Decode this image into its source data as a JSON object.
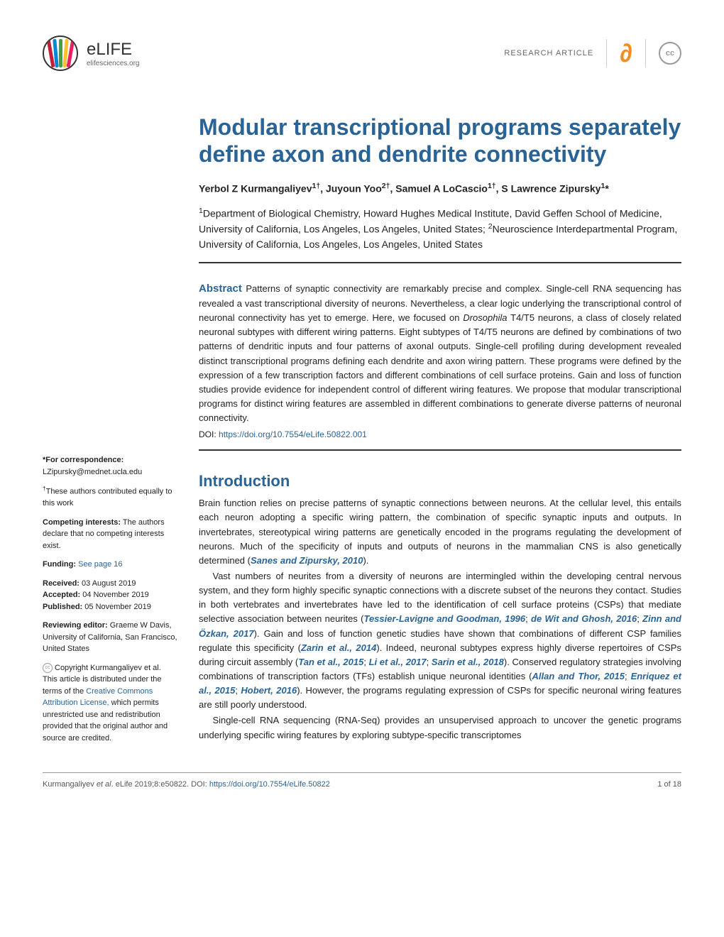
{
  "header": {
    "journal_name": "eLIFE",
    "journal_url": "elifesciences.org",
    "article_type": "RESEARCH ARTICLE"
  },
  "title": "Modular transcriptional programs separately define axon and dendrite connectivity",
  "authors_html": "Yerbol Z Kurmangaliyev<sup>1†</sup>, Juyoun Yoo<sup>2†</sup>, Samuel A LoCascio<sup>1†</sup>, S Lawrence Zipursky<sup>1</sup>*",
  "affiliations_html": "<sup>1</sup>Department of Biological Chemistry, Howard Hughes Medical Institute, David Geffen School of Medicine, University of California, Los Angeles, Los Angeles, United States; <sup>2</sup>Neuroscience Interdepartmental Program, University of California, Los Angeles, Los Angeles, United States",
  "abstract_label": "Abstract",
  "abstract_html": "Patterns of synaptic connectivity are remarkably precise and complex. Single-cell RNA sequencing has revealed a vast transcriptional diversity of neurons. Nevertheless, a clear logic underlying the transcriptional control of neuronal connectivity has yet to emerge. Here, we focused on <span class='italic'>Drosophila</span> T4/T5 neurons, a class of closely related neuronal subtypes with different wiring patterns. Eight subtypes of T4/T5 neurons are defined by combinations of two patterns of dendritic inputs and four patterns of axonal outputs. Single-cell profiling during development revealed distinct transcriptional programs defining each dendrite and axon wiring pattern. These programs were defined by the expression of a few transcription factors and different combinations of cell surface proteins. Gain and loss of function studies provide evidence for independent control of different wiring features. We propose that modular transcriptional programs for distinct wiring features are assembled in different combinations to generate diverse patterns of neuronal connectivity.",
  "doi_label": "DOI:",
  "doi_link": "https://doi.org/10.7554/eLife.50822.001",
  "intro_heading": "Introduction",
  "intro_p1": "Brain function relies on precise patterns of synaptic connections between neurons. At the cellular level, this entails each neuron adopting a specific wiring pattern, the combination of specific synaptic inputs and outputs. In invertebrates, stereotypical wiring patterns are genetically encoded in the programs regulating the development of neurons. Much of the specificity of inputs and outputs of neurons in the mammalian CNS is also genetically determined (<span class='ref'>Sanes and Zipursky, 2010</span>).",
  "intro_p2": "Vast numbers of neurites from a diversity of neurons are intermingled within the developing central nervous system, and they form highly specific synaptic connections with a discrete subset of the neurons they contact. Studies in both vertebrates and invertebrates have led to the identification of cell surface proteins (CSPs) that mediate selective association between neurites (<span class='ref'>Tessier-Lavigne and Goodman, 1996</span>; <span class='ref'>de Wit and Ghosh, 2016</span>; <span class='ref'>Zinn and Özkan, 2017</span>). Gain and loss of function genetic studies have shown that combinations of different CSP families regulate this specificity (<span class='ref'>Zarin et al., 2014</span>). Indeed, neuronal subtypes express highly diverse repertoires of CSPs during circuit assembly (<span class='ref'>Tan et al., 2015</span>; <span class='ref'>Li et al., 2017</span>; <span class='ref'>Sarin et al., 2018</span>). Conserved regulatory strategies involving combinations of transcription factors (TFs) establish unique neuronal identities (<span class='ref'>Allan and Thor, 2015</span>; <span class='ref'>Enriquez et al., 2015</span>; <span class='ref'>Hobert, 2016</span>). However, the programs regulating expression of CSPs for specific neuronal wiring features are still poorly understood.",
  "intro_p3": "Single-cell RNA sequencing (RNA-Seq) provides an unsupervised approach to uncover the genetic programs underlying specific wiring features by exploring subtype-specific transcriptomes",
  "sidebar": {
    "corr_label": "*For correspondence:",
    "corr_email": "LZipursky@mednet.ucla.edu",
    "equal": "†These authors contributed equally to this work",
    "competing_label": "Competing interests:",
    "competing_text": " The authors declare that no competing interests exist.",
    "funding_label": "Funding:",
    "funding_link": "See page 16",
    "received_label": "Received:",
    "received_date": " 03 August 2019",
    "accepted_label": "Accepted:",
    "accepted_date": " 04 November 2019",
    "published_label": "Published:",
    "published_date": " 05 November 2019",
    "editor_label": "Reviewing editor:",
    "editor_text": " Graeme W Davis, University of California, San Francisco, United States",
    "copyright_text": "Copyright Kurmangaliyev et al. This article is distributed under the terms of the ",
    "license_link": "Creative Commons Attribution License,",
    "copyright_rest": " which permits unrestricted use and redistribution provided that the original author and source are credited."
  },
  "footer": {
    "citation_html": "Kurmangaliyev <span class='italic'>et al</span>. eLife 2019;8:e50822. ",
    "doi_label": "DOI:",
    "doi_link": "https://doi.org/10.7554/eLife.50822",
    "page": "1 of 18"
  },
  "colors": {
    "accent": "#2a6496",
    "oa_orange": "#f68b1f"
  }
}
